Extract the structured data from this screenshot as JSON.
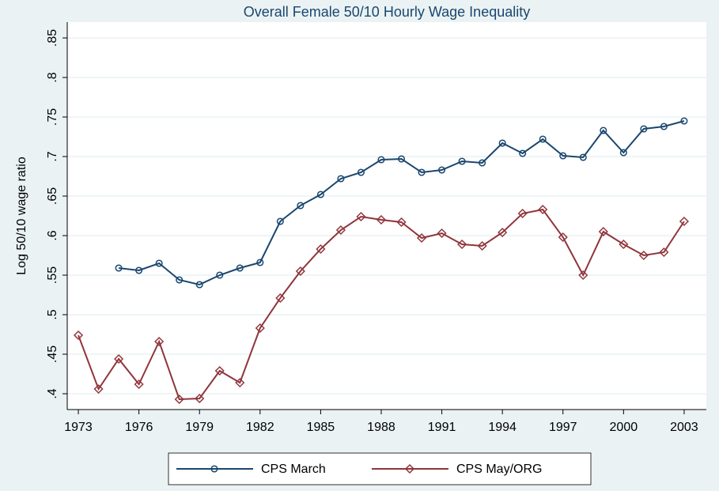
{
  "chart_data": {
    "type": "line",
    "title": "Overall Female 50/10 Hourly Wage Inequality",
    "y_label": "Log 50/10 wage ratio",
    "x": [
      1973,
      1974,
      1975,
      1976,
      1977,
      1978,
      1979,
      1980,
      1981,
      1982,
      1983,
      1984,
      1985,
      1986,
      1987,
      1988,
      1989,
      1990,
      1991,
      1992,
      1993,
      1994,
      1995,
      1996,
      1997,
      1998,
      1999,
      2000,
      2001,
      2002,
      2003
    ],
    "series": [
      {
        "name": "CPS March",
        "color": "#1a476f",
        "marker": "circle",
        "values": [
          null,
          null,
          0.559,
          0.556,
          0.565,
          0.544,
          0.538,
          0.55,
          0.559,
          0.566,
          0.618,
          0.638,
          0.652,
          0.672,
          0.68,
          0.696,
          0.697,
          0.68,
          0.683,
          0.694,
          0.692,
          0.717,
          0.704,
          0.722,
          0.701,
          0.699,
          0.733,
          0.705,
          0.735,
          0.738,
          0.745
        ]
      },
      {
        "name": "CPS May/ORG",
        "color": "#90353b",
        "marker": "diamond",
        "values": [
          0.474,
          0.406,
          0.444,
          0.412,
          0.466,
          0.393,
          0.394,
          0.429,
          0.414,
          0.483,
          0.521,
          0.555,
          0.583,
          0.607,
          0.624,
          0.62,
          0.617,
          0.597,
          0.603,
          0.589,
          0.587,
          0.604,
          0.628,
          0.633,
          0.598,
          0.55,
          0.605,
          0.589,
          0.575,
          0.579,
          0.618
        ]
      }
    ],
    "xlim": [
      1972.45,
      2004.1
    ],
    "xticks": [
      1973,
      1976,
      1979,
      1982,
      1985,
      1988,
      1991,
      1994,
      1997,
      2000,
      2003
    ],
    "ylim": [
      0.38,
      0.87
    ],
    "yticks": [
      {
        "value": 0.4,
        "label": ".4"
      },
      {
        "value": 0.45,
        "label": ".45"
      },
      {
        "value": 0.5,
        "label": ".5"
      },
      {
        "value": 0.55,
        "label": ".55"
      },
      {
        "value": 0.6,
        "label": ".6"
      },
      {
        "value": 0.65,
        "label": ".65"
      },
      {
        "value": 0.7,
        "label": ".7"
      },
      {
        "value": 0.75,
        "label": ".75"
      },
      {
        "value": 0.8,
        "label": ".8"
      },
      {
        "value": 0.85,
        "label": ".85"
      }
    ],
    "grid": true
  }
}
